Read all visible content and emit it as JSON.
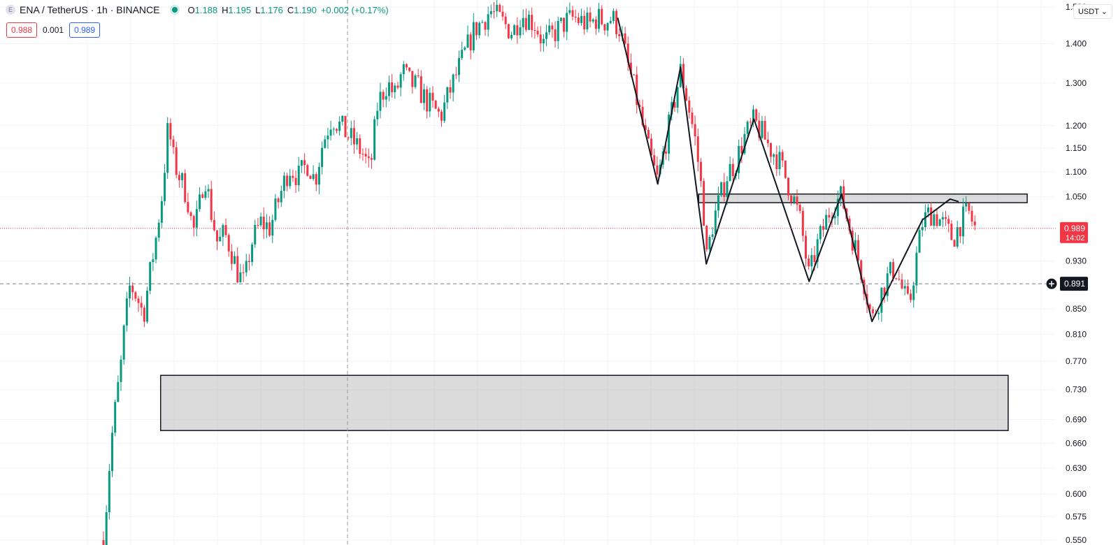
{
  "header": {
    "symbol_icon": "E",
    "title": "ENA / TetherUS · 1h · BINANCE",
    "ohlc": [
      {
        "key": "O",
        "value": "1.188"
      },
      {
        "key": "H",
        "value": "1.195"
      },
      {
        "key": "L",
        "value": "1.176"
      },
      {
        "key": "C",
        "value": "1.190"
      },
      {
        "key": "",
        "value": "+0.002 (+0.17%)"
      }
    ],
    "status_color": "#089981"
  },
  "quote": {
    "sell": "0.988",
    "spread": "0.001",
    "buy": "0.989"
  },
  "currency_button": "USDT ⌄",
  "colors": {
    "up": "#089981",
    "down": "#f23645",
    "pattern": "#131722"
  },
  "chart_data": {
    "type": "candlestick",
    "scale": "log",
    "ylim": [
      0.545,
      1.52
    ],
    "y_ticks": [
      "1.500",
      "1.400",
      "1.300",
      "1.200",
      "1.150",
      "1.100",
      "1.050",
      "0.930",
      "0.850",
      "0.810",
      "0.770",
      "0.730",
      "0.690",
      "0.660",
      "0.630",
      "0.600",
      "0.575",
      "0.550"
    ],
    "current_price": {
      "value": 0.989,
      "label": "0.989",
      "countdown": "14:02"
    },
    "crosshair_price": {
      "value": 0.891,
      "label": "0.891"
    },
    "zones": [
      {
        "name": "demand-zone",
        "x_range": [
          0.06,
          0.95
        ],
        "y_top": 0.75,
        "y_bottom": 0.676
      },
      {
        "name": "resistance-zone",
        "x_range": [
          0.625,
          0.97
        ],
        "y_top": 1.055,
        "y_bottom": 1.038
      }
    ],
    "pattern_lines": [
      {
        "points": [
          [
            0.54,
            1.47
          ],
          [
            0.582,
            1.075
          ],
          [
            0.606,
            1.34
          ],
          [
            0.633,
            0.925
          ],
          [
            0.683,
            1.215
          ],
          [
            0.741,
            0.895
          ],
          [
            0.775,
            1.055
          ],
          [
            0.807,
            0.83
          ],
          [
            0.86,
            1.005
          ],
          [
            0.889,
            1.045
          ],
          [
            0.898,
            1.04
          ]
        ]
      }
    ],
    "path": [
      [
        0.0,
        0.55
      ],
      [
        0.004,
        0.6
      ],
      [
        0.008,
        0.66
      ],
      [
        0.012,
        0.7
      ],
      [
        0.018,
        0.76
      ],
      [
        0.022,
        0.82
      ],
      [
        0.028,
        0.89
      ],
      [
        0.035,
        0.87
      ],
      [
        0.042,
        0.84
      ],
      [
        0.048,
        0.9
      ],
      [
        0.055,
        0.97
      ],
      [
        0.062,
        1.06
      ],
      [
        0.068,
        1.2
      ],
      [
        0.074,
        1.12
      ],
      [
        0.08,
        1.09
      ],
      [
        0.088,
        1.05
      ],
      [
        0.094,
        0.98
      ],
      [
        0.1,
        1.02
      ],
      [
        0.106,
        1.1
      ],
      [
        0.113,
        1.02
      ],
      [
        0.12,
        0.96
      ],
      [
        0.127,
        0.98
      ],
      [
        0.134,
        0.95
      ],
      [
        0.141,
        0.91
      ],
      [
        0.148,
        0.89
      ],
      [
        0.155,
        0.96
      ],
      [
        0.165,
        1.0
      ],
      [
        0.175,
        0.99
      ],
      [
        0.185,
        1.05
      ],
      [
        0.195,
        1.11
      ],
      [
        0.205,
        1.09
      ],
      [
        0.215,
        1.12
      ],
      [
        0.222,
        1.08
      ],
      [
        0.23,
        1.16
      ],
      [
        0.24,
        1.22
      ],
      [
        0.248,
        1.2
      ],
      [
        0.256,
        1.18
      ],
      [
        0.264,
        1.16
      ],
      [
        0.272,
        1.14
      ],
      [
        0.28,
        1.1
      ],
      [
        0.288,
        1.25
      ],
      [
        0.298,
        1.3
      ],
      [
        0.306,
        1.27
      ],
      [
        0.314,
        1.33
      ],
      [
        0.322,
        1.3
      ],
      [
        0.33,
        1.29
      ],
      [
        0.338,
        1.26
      ],
      [
        0.346,
        1.24
      ],
      [
        0.354,
        1.22
      ],
      [
        0.362,
        1.27
      ],
      [
        0.372,
        1.33
      ],
      [
        0.382,
        1.39
      ],
      [
        0.39,
        1.44
      ],
      [
        0.398,
        1.46
      ],
      [
        0.406,
        1.49
      ],
      [
        0.414,
        1.47
      ],
      [
        0.422,
        1.45
      ],
      [
        0.43,
        1.43
      ],
      [
        0.438,
        1.48
      ],
      [
        0.446,
        1.47
      ],
      [
        0.454,
        1.45
      ],
      [
        0.462,
        1.4
      ],
      [
        0.47,
        1.42
      ],
      [
        0.478,
        1.44
      ],
      [
        0.486,
        1.46
      ],
      [
        0.494,
        1.47
      ],
      [
        0.502,
        1.46
      ],
      [
        0.51,
        1.45
      ],
      [
        0.518,
        1.47
      ],
      [
        0.526,
        1.46
      ],
      [
        0.534,
        1.47
      ],
      [
        0.542,
        1.44
      ],
      [
        0.55,
        1.35
      ],
      [
        0.558,
        1.28
      ],
      [
        0.566,
        1.2
      ],
      [
        0.574,
        1.13
      ],
      [
        0.582,
        1.08
      ],
      [
        0.59,
        1.16
      ],
      [
        0.598,
        1.24
      ],
      [
        0.606,
        1.33
      ],
      [
        0.614,
        1.25
      ],
      [
        0.622,
        1.16
      ],
      [
        0.63,
        1.03
      ],
      [
        0.633,
        0.93
      ],
      [
        0.64,
        1.0
      ],
      [
        0.648,
        1.05
      ],
      [
        0.656,
        1.1
      ],
      [
        0.664,
        1.12
      ],
      [
        0.672,
        1.17
      ],
      [
        0.683,
        1.21
      ],
      [
        0.692,
        1.18
      ],
      [
        0.7,
        1.15
      ],
      [
        0.708,
        1.13
      ],
      [
        0.716,
        1.09
      ],
      [
        0.724,
        1.05
      ],
      [
        0.732,
        1.0
      ],
      [
        0.741,
        0.9
      ],
      [
        0.748,
        0.95
      ],
      [
        0.756,
        0.99
      ],
      [
        0.764,
        1.03
      ],
      [
        0.775,
        1.05
      ],
      [
        0.782,
        1.0
      ],
      [
        0.79,
        0.95
      ],
      [
        0.798,
        0.9
      ],
      [
        0.807,
        0.83
      ],
      [
        0.815,
        0.87
      ],
      [
        0.823,
        0.9
      ],
      [
        0.831,
        0.92
      ],
      [
        0.839,
        0.88
      ],
      [
        0.846,
        0.85
      ],
      [
        0.853,
        0.93
      ],
      [
        0.86,
        1.0
      ],
      [
        0.868,
        1.02
      ],
      [
        0.876,
        1.01
      ],
      [
        0.884,
        0.99
      ],
      [
        0.892,
        0.97
      ],
      [
        0.9,
        1.0
      ],
      [
        0.908,
        1.02
      ],
      [
        0.915,
        0.99
      ]
    ]
  }
}
